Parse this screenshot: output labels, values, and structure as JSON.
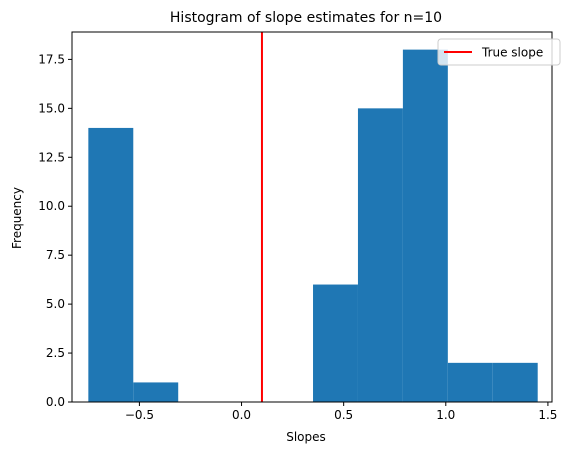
{
  "chart_data": {
    "type": "histogram",
    "title": "Histogram of slope estimates for n=10",
    "xlabel": "Slopes",
    "ylabel": "Frequency",
    "xlim": [
      -0.83,
      1.52
    ],
    "ylim": [
      0,
      18.9
    ],
    "xticks": [
      -0.5,
      0.0,
      0.5,
      1.0,
      1.5
    ],
    "xtick_labels": [
      "−0.5",
      "0.0",
      "0.5",
      "1.0",
      "1.5"
    ],
    "yticks": [
      0.0,
      2.5,
      5.0,
      7.5,
      10.0,
      12.5,
      15.0,
      17.5
    ],
    "ytick_labels": [
      "0.0",
      "2.5",
      "5.0",
      "7.5",
      "10.0",
      "12.5",
      "15.0",
      "17.5"
    ],
    "bin_edges": [
      -0.75,
      -0.53,
      -0.31,
      -0.09,
      0.13,
      0.35,
      0.57,
      0.79,
      1.01,
      1.23,
      1.45
    ],
    "counts": [
      14,
      1,
      0,
      0,
      0,
      6,
      15,
      18,
      2,
      2
    ],
    "bar_color": "#1f77b4",
    "true_slope": 0.1,
    "true_slope_color": "#ff0000",
    "legend": {
      "placement": "top-right",
      "entries": [
        {
          "label": "True slope",
          "color": "#ff0000"
        }
      ]
    }
  }
}
